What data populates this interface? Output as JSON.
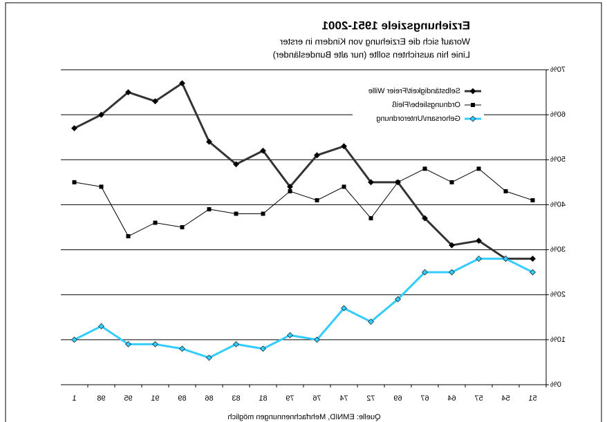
{
  "chart_data": {
    "type": "line",
    "title": "Erziehungsziele 1951-2001",
    "subtitle": [
      "Worauf sich die Erziehung von Kindern in erster",
      "Linie hin ausrichten sollte (nur alte Bundesländer)"
    ],
    "source": "Quelle: EMNID, Mehrfachnennungen möglich",
    "categories": [
      "51",
      "54",
      "57",
      "64",
      "67",
      "69",
      "72",
      "74",
      "76",
      "79",
      "81",
      "83",
      "86",
      "89",
      "91",
      "95",
      "98",
      "1"
    ],
    "series": [
      {
        "name": "Selbständigkeit/Freier Wille",
        "color": "#333333",
        "marker": "diamond",
        "width": 3,
        "values": [
          28,
          28,
          32,
          31,
          37,
          45,
          45,
          53,
          51,
          44,
          52,
          49,
          54,
          67,
          63,
          65,
          60,
          57
        ]
      },
      {
        "name": "Ordnungsliebe/Fleiß",
        "color": "#000000",
        "marker": "square",
        "width": 1,
        "values": [
          41,
          43,
          48,
          45,
          48,
          45,
          37,
          44,
          41,
          43,
          38,
          38,
          39,
          35,
          36,
          33,
          44,
          45
        ]
      },
      {
        "name": "Gehorsam/Unterordnung",
        "color": "#33ccff",
        "marker": "diamond",
        "width": 3,
        "values": [
          25,
          28,
          28,
          25,
          25,
          19,
          14,
          17,
          10,
          11,
          8,
          9,
          6,
          8,
          9,
          9,
          13,
          10
        ]
      }
    ],
    "ylim": [
      0,
      70
    ],
    "yticks": [
      {
        "value": 0,
        "label": "0%"
      },
      {
        "value": 10,
        "label": "10%"
      },
      {
        "value": 20,
        "label": "20%"
      },
      {
        "value": 30,
        "label": "30%"
      },
      {
        "value": 40,
        "label": "40%"
      },
      {
        "value": 50,
        "label": "50%"
      },
      {
        "value": 60,
        "label": "60%"
      },
      {
        "value": 70,
        "label": "70%"
      }
    ],
    "grid": true,
    "legend": "upper left",
    "mirrored": true
  }
}
